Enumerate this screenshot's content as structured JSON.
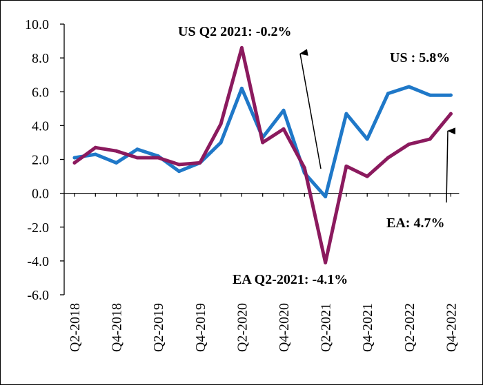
{
  "chart_data": {
    "type": "line",
    "title": "",
    "xlabel": "",
    "ylabel": "",
    "ylim": [
      -6.0,
      10.0
    ],
    "y_ticks": [
      "10.0",
      "8.0",
      "6.0",
      "4.0",
      "2.0",
      "0.0",
      "-2.0",
      "-4.0",
      "-6.0"
    ],
    "y_tick_values": [
      10,
      8,
      6,
      4,
      2,
      0,
      -2,
      -4,
      -6
    ],
    "x": [
      "Q2-2018",
      "Q3-2018",
      "Q4-2018",
      "Q1-2019",
      "Q2-2019",
      "Q3-2019",
      "Q4-2019",
      "Q1-2020",
      "Q2-2020",
      "Q3-2020",
      "Q4-2020",
      "Q1-2021",
      "Q2-2021",
      "Q3-2021",
      "Q4-2021",
      "Q1-2022",
      "Q2-2022",
      "Q3-2022",
      "Q4-2022"
    ],
    "x_tick_labels": [
      "Q2-2018",
      "Q4-2018",
      "Q2-2019",
      "Q4-2019",
      "Q2-2020",
      "Q4-2020",
      "Q2-2021",
      "Q4-2021",
      "Q2-2022",
      "Q4-2022"
    ],
    "x_tick_label_indices": [
      0,
      2,
      4,
      6,
      8,
      10,
      12,
      14,
      16,
      18
    ],
    "grid": false,
    "series": [
      {
        "key": "us",
        "color": "#1f78c8",
        "values": [
          2.1,
          2.3,
          1.8,
          2.6,
          2.2,
          1.3,
          1.8,
          3.0,
          6.2,
          3.3,
          4.9,
          1.2,
          -0.2,
          4.7,
          3.2,
          5.9,
          6.3,
          5.8,
          5.8
        ]
      },
      {
        "key": "ea",
        "color": "#8b1a5e",
        "values": [
          1.8,
          2.7,
          2.5,
          2.1,
          2.1,
          1.7,
          1.8,
          4.1,
          8.6,
          3.0,
          3.8,
          1.5,
          -4.1,
          1.6,
          1.0,
          2.1,
          2.9,
          3.2,
          4.7
        ]
      }
    ],
    "annotations": [
      {
        "key": "us_q2_2021",
        "text": "US Q2 2021: -0.2%"
      },
      {
        "key": "us_latest",
        "text": "US : 5.8%"
      },
      {
        "key": "ea_latest",
        "text": "EA:  4.7%"
      },
      {
        "key": "ea_q2_2021",
        "text": "EA  Q2-2021: -4.1%"
      }
    ]
  }
}
